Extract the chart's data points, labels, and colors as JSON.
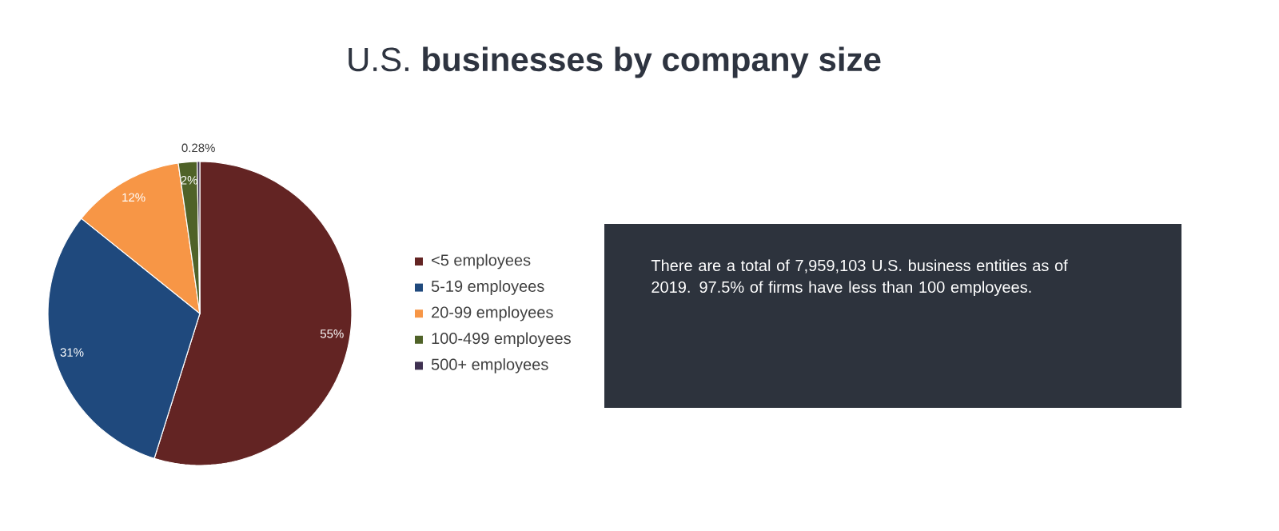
{
  "chart_data": {
    "type": "pie",
    "title": "U.S. **businesses by company size**",
    "categories": [
      "<5 employees",
      "5-19 employees",
      "20-99 employees",
      "100-499 employees",
      "500+ employees"
    ],
    "values": [
      55,
      31,
      12,
      2,
      0.28
    ],
    "colors": [
      "#632423",
      "#1f497d",
      "#f79646",
      "#4f6228",
      "#3f3151"
    ],
    "value_labels": [
      "55%",
      "31%",
      "12%",
      "2%",
      "0.28%"
    ],
    "legend": "right",
    "annotations": [
      "There are a total of 7,959,103 U.S. business entities as of 2019. 97.5% of firms have less than 100 employees."
    ]
  }
}
